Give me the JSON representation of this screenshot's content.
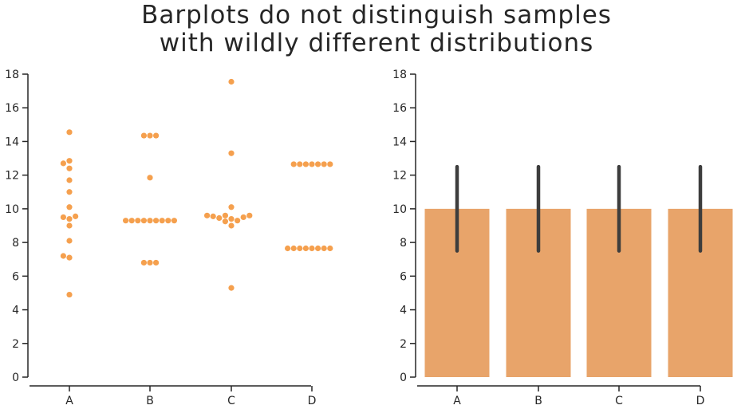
{
  "title_lines": [
    "Barplots do not distinguish samples",
    "with wildly different distributions"
  ],
  "colors": {
    "points": "#F5A04E",
    "bars": "#E8A46A",
    "errorbar": "#3d3d3d",
    "axis": "#262626"
  },
  "chart_data": [
    {
      "type": "scatter",
      "subtype": "swarm",
      "categories": [
        "A",
        "B",
        "C",
        "D"
      ],
      "ylim": [
        0,
        18
      ],
      "yticks": [
        0,
        2,
        4,
        6,
        8,
        10,
        12,
        14,
        16,
        18
      ],
      "series": [
        {
          "category": "A",
          "values": [
            4.9,
            7.1,
            7.2,
            8.1,
            9.0,
            9.4,
            9.5,
            9.55,
            10.1,
            11.0,
            11.7,
            12.4,
            12.7,
            12.85,
            14.55
          ]
        },
        {
          "category": "B",
          "values": [
            6.8,
            6.8,
            6.8,
            9.3,
            9.3,
            9.3,
            9.3,
            9.3,
            9.3,
            9.3,
            9.3,
            9.3,
            11.85,
            14.35,
            14.35,
            14.35
          ]
        },
        {
          "category": "C",
          "values": [
            5.3,
            9.0,
            9.25,
            9.3,
            9.4,
            9.45,
            9.5,
            9.55,
            9.6,
            9.6,
            9.6,
            10.1,
            13.3,
            17.55
          ]
        },
        {
          "category": "D",
          "values": [
            7.65,
            7.65,
            7.65,
            7.65,
            7.65,
            7.65,
            7.65,
            7.65,
            12.65,
            12.65,
            12.65,
            12.65,
            12.65,
            12.65,
            12.65
          ]
        }
      ]
    },
    {
      "type": "bar",
      "categories": [
        "A",
        "B",
        "C",
        "D"
      ],
      "values": [
        10,
        10,
        10,
        10
      ],
      "error_low": [
        7.5,
        7.5,
        7.5,
        7.5
      ],
      "error_high": [
        12.5,
        12.5,
        12.5,
        12.5
      ],
      "ylim": [
        0,
        18
      ],
      "yticks": [
        0,
        2,
        4,
        6,
        8,
        10,
        12,
        14,
        16,
        18
      ]
    }
  ]
}
